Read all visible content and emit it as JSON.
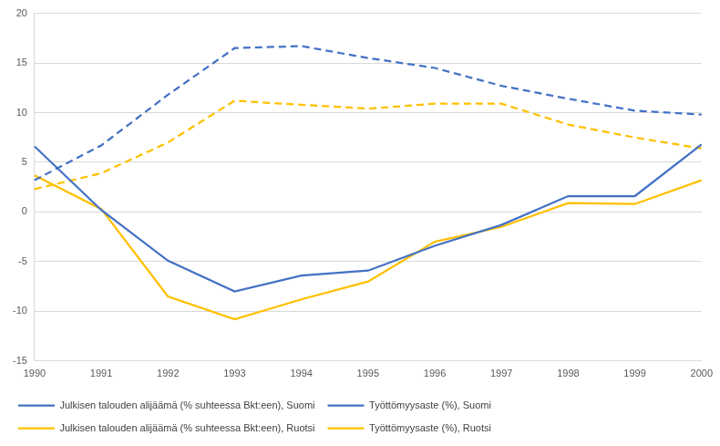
{
  "chart_data": {
    "type": "line",
    "categories": [
      "1990",
      "1991",
      "1992",
      "1993",
      "1994",
      "1995",
      "1996",
      "1997",
      "1998",
      "1999",
      "2000"
    ],
    "series": [
      {
        "name": "Julkisen talouden alijäämä (% suhteessa Bkt:een), Suomi",
        "color": "#4472c4",
        "line_style": "solid",
        "marker": "none",
        "values": [
          6.6,
          0.2,
          -4.9,
          -8.0,
          -6.4,
          -5.9,
          -3.4,
          -1.3,
          1.6,
          1.6,
          6.8
        ]
      },
      {
        "name": "Työttömyysaste (%), Suomi",
        "color": "#4472c4",
        "line_style": "dashed",
        "marker": "none",
        "values": [
          3.2,
          6.7,
          11.8,
          16.5,
          16.7,
          15.5,
          14.5,
          12.7,
          11.4,
          10.2,
          9.8
        ]
      },
      {
        "name": "Julkisen talouden alijäämä (% suhteessa Bkt:een), Ruotsi",
        "color": "#ffc000",
        "line_style": "solid",
        "marker": "none",
        "values": [
          3.7,
          0.3,
          -8.5,
          -10.8,
          -8.8,
          -7.0,
          -3.0,
          -1.5,
          0.9,
          0.8,
          3.2
        ]
      },
      {
        "name": "Työttömyysaste (%), Ruotsi",
        "color": "#ffc000",
        "line_style": "dashed",
        "marker": "none",
        "values": [
          2.3,
          3.9,
          7.0,
          11.2,
          10.8,
          10.4,
          10.9,
          10.9,
          8.8,
          7.5,
          6.4
        ]
      }
    ],
    "ylim": [
      -15,
      20
    ],
    "yticks": [
      -15,
      -10,
      -5,
      0,
      5,
      10,
      15,
      20
    ],
    "grid": true,
    "legend": "bottom"
  }
}
